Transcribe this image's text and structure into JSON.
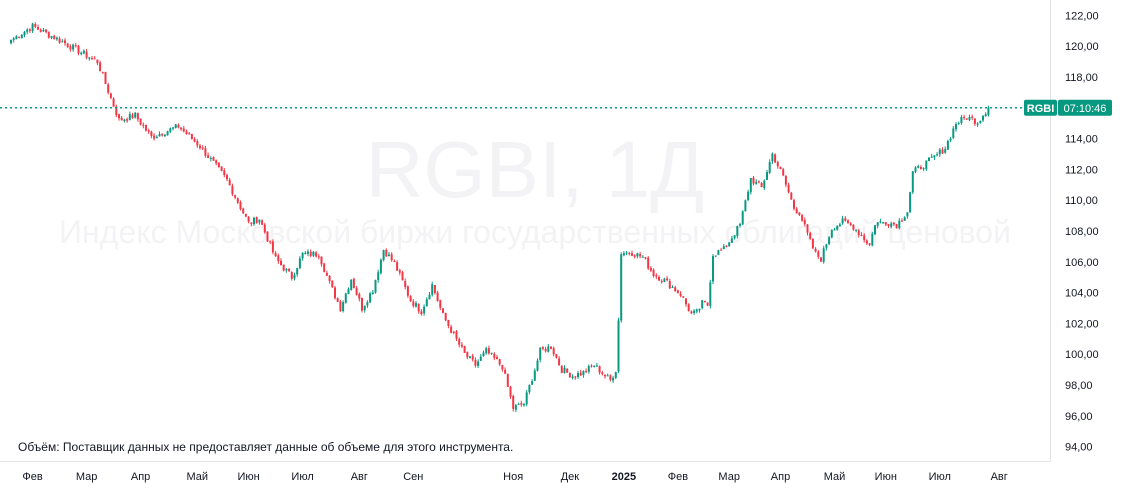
{
  "chart_data": {
    "type": "candlestick",
    "symbol_label": "RGBI",
    "watermark_title": "RGBI, 1Д",
    "watermark_subtitle": "Индекс Московской биржи государственных облигаций ценовой",
    "volume_note": "Объём: Поставщик данных не предоставляет данные об объеме для этого инструмента.",
    "last_price_tag": {
      "symbol": "RGBI",
      "time": "07:10:46",
      "value": 116.0
    },
    "ylim": [
      93.0,
      123.0
    ],
    "y_ticks": [
      122.0,
      120.0,
      118.0,
      116.0,
      114.0,
      112.0,
      110.0,
      108.0,
      106.0,
      104.0,
      102.0,
      100.0,
      98.0,
      96.0,
      94.0
    ],
    "y_tick_labels": [
      "122,00",
      "120,00",
      "118,00",
      "116,00",
      "114,00",
      "112,00",
      "110,00",
      "108,00",
      "106,00",
      "104,00",
      "102,00",
      "100,00",
      "98,00",
      "96,00",
      "94,00"
    ],
    "x_ticks": [
      {
        "label": "Фев",
        "i": 8,
        "bold": false
      },
      {
        "label": "Мар",
        "i": 28,
        "bold": false
      },
      {
        "label": "Апр",
        "i": 48,
        "bold": false
      },
      {
        "label": "Май",
        "i": 69,
        "bold": false
      },
      {
        "label": "Июн",
        "i": 88,
        "bold": false
      },
      {
        "label": "Июл",
        "i": 108,
        "bold": false
      },
      {
        "label": "Авг",
        "i": 129,
        "bold": false
      },
      {
        "label": "Сен",
        "i": 149,
        "bold": false
      },
      {
        "label": "Ноя",
        "i": 186,
        "bold": false
      },
      {
        "label": "Дек",
        "i": 207,
        "bold": false
      },
      {
        "label": "2025",
        "i": 227,
        "bold": true
      },
      {
        "label": "Фев",
        "i": 247,
        "bold": false
      },
      {
        "label": "Мар",
        "i": 266,
        "bold": false
      },
      {
        "label": "Апр",
        "i": 285,
        "bold": false
      },
      {
        "label": "Май",
        "i": 305,
        "bold": false
      },
      {
        "label": "Июн",
        "i": 324,
        "bold": false
      },
      {
        "label": "Июл",
        "i": 344,
        "bold": false
      },
      {
        "label": "Авг",
        "i": 366,
        "bold": false
      }
    ],
    "bar_count_total": 376,
    "path": [
      [
        0,
        120.4
      ],
      [
        8,
        121.3
      ],
      [
        20,
        120.2
      ],
      [
        32,
        119.0
      ],
      [
        40,
        115.2
      ],
      [
        46,
        115.5
      ],
      [
        52,
        114.1
      ],
      [
        62,
        114.8
      ],
      [
        70,
        113.5
      ],
      [
        80,
        111.3
      ],
      [
        88,
        108.5
      ],
      [
        92,
        108.8
      ],
      [
        98,
        106.2
      ],
      [
        104,
        105.0
      ],
      [
        108,
        106.5
      ],
      [
        114,
        106.5
      ],
      [
        118,
        104.6
      ],
      [
        122,
        103.0
      ],
      [
        126,
        104.9
      ],
      [
        130,
        103.0
      ],
      [
        134,
        104.2
      ],
      [
        138,
        106.8
      ],
      [
        142,
        105.9
      ],
      [
        148,
        103.5
      ],
      [
        152,
        102.8
      ],
      [
        156,
        104.5
      ],
      [
        160,
        102.5
      ],
      [
        168,
        100.0
      ],
      [
        172,
        99.3
      ],
      [
        176,
        100.2
      ],
      [
        182,
        99.2
      ],
      [
        186,
        96.5
      ],
      [
        190,
        96.8
      ],
      [
        194,
        99.0
      ],
      [
        196,
        100.2
      ],
      [
        200,
        100.5
      ],
      [
        204,
        99.0
      ],
      [
        208,
        98.6
      ],
      [
        212,
        98.8
      ],
      [
        216,
        99.3
      ],
      [
        220,
        98.6
      ],
      [
        222,
        98.3
      ],
      [
        224,
        99.0
      ],
      [
        225,
        102.2
      ],
      [
        226,
        106.6
      ],
      [
        230,
        106.6
      ],
      [
        234,
        106.3
      ],
      [
        238,
        105.2
      ],
      [
        242,
        104.8
      ],
      [
        248,
        103.9
      ],
      [
        252,
        102.6
      ],
      [
        254,
        102.7
      ],
      [
        256,
        103.3
      ],
      [
        258,
        103.2
      ],
      [
        260,
        106.5
      ],
      [
        264,
        106.8
      ],
      [
        270,
        108.4
      ],
      [
        274,
        111.4
      ],
      [
        278,
        110.8
      ],
      [
        282,
        113.0
      ],
      [
        286,
        111.5
      ],
      [
        290,
        109.5
      ],
      [
        292,
        109.2
      ],
      [
        296,
        107.3
      ],
      [
        298,
        106.5
      ],
      [
        300,
        106.2
      ],
      [
        304,
        108.2
      ],
      [
        308,
        108.6
      ],
      [
        312,
        108.3
      ],
      [
        316,
        107.5
      ],
      [
        318,
        107.1
      ],
      [
        320,
        108.5
      ],
      [
        324,
        108.6
      ],
      [
        328,
        108.4
      ],
      [
        332,
        109.3
      ],
      [
        334,
        111.8
      ],
      [
        338,
        112.3
      ],
      [
        342,
        112.8
      ],
      [
        346,
        113.4
      ],
      [
        350,
        115.0
      ],
      [
        354,
        115.4
      ],
      [
        358,
        115.1
      ],
      [
        362,
        116.0
      ]
    ]
  }
}
